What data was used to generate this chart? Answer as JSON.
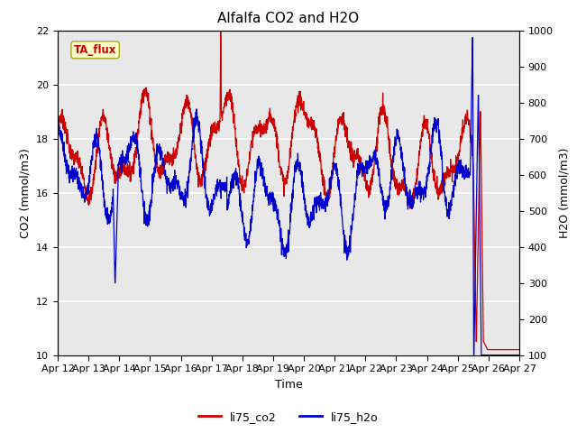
{
  "title": "Alfalfa CO2 and H2O",
  "xlabel": "Time",
  "ylabel_left": "CO2 (mmol/m3)",
  "ylabel_right": "H2O (mmol/m3)",
  "ylim_left": [
    10,
    22
  ],
  "ylim_right": [
    100,
    1000
  ],
  "yticks_left": [
    10,
    12,
    14,
    16,
    18,
    20,
    22
  ],
  "yticks_right": [
    100,
    200,
    300,
    400,
    500,
    600,
    700,
    800,
    900,
    1000
  ],
  "line_color_co2": "#cc0000",
  "line_color_h2o": "#0000cc",
  "bg_color": "#e8e8e8",
  "legend_label_co2": "li75_co2",
  "legend_label_h2o": "li75_h2o",
  "annotation_text": "TA_flux",
  "annotation_color": "#cc0000",
  "annotation_bg": "#ffffcc",
  "x_tick_labels": [
    "Apr 12",
    "Apr 13",
    "Apr 14",
    "Apr 15",
    "Apr 16",
    "Apr 17",
    "Apr 18",
    "Apr 19",
    "Apr 20",
    "Apr 21",
    "Apr 22",
    "Apr 23",
    "Apr 24",
    "Apr 25",
    "Apr 26",
    "Apr 27"
  ],
  "title_fontsize": 11,
  "label_fontsize": 9,
  "tick_fontsize": 8
}
